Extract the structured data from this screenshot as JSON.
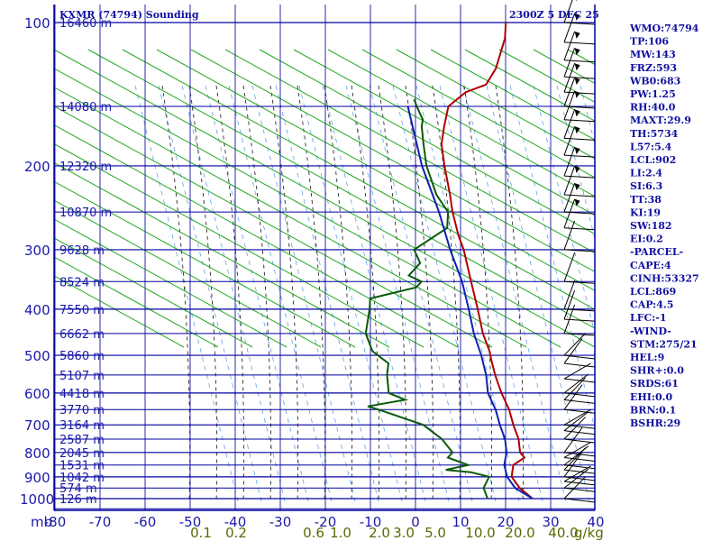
{
  "header": {
    "station": "KXMR (74794) Sounding",
    "time": "2300Z 5 DEC 25"
  },
  "indices": [
    "WMO:74794",
    "TP:106",
    "MW:143",
    "FRZ:593",
    "WB0:683",
    "PW:1.25",
    "RH:40.0",
    "MAXT:29.9",
    "TH:5734",
    "L57:5.4",
    "LCL:902",
    "LI:2.4",
    "SI:6.3",
    "TT:38",
    "KI:19",
    "SW:182",
    "EI:0.2",
    "-PARCEL-",
    "CAPE:4",
    "CINH:53327",
    "LCL:869",
    "CAP:4.5",
    "LFC:-1",
    "-WIND-",
    "STM:275/21",
    "HEL:9",
    "SHR+:0.0",
    "SRDS:61",
    "EHI:0.0",
    "BRN:0.1",
    "BSHR:29"
  ],
  "colors": {
    "grid": "#0000a0",
    "isotherm": "#2a2aa8",
    "dry_adiabat": "#22a822",
    "moist_adiabat": "#2a2a2a",
    "mixing_ratio": "#3a8ae0",
    "temperature": "#b00000",
    "dewpoint": "#0a5a0a",
    "parcel": "#1020b0",
    "text": "#1010a0",
    "mixing_label": "#5a6a00"
  },
  "chart_data": {
    "type": "line",
    "title": "KXMR (74794) Sounding",
    "axis_units_label": "mb",
    "pressure_ticks": [
      "100",
      "200",
      "300",
      "400",
      "500",
      "600",
      "700",
      "800",
      "900",
      "1000"
    ],
    "height_labels": [
      {
        "p": 100,
        "text": "16460 m"
      },
      {
        "p": 150,
        "text": "14080 m"
      },
      {
        "p": 200,
        "text": "12320 m"
      },
      {
        "p": 250,
        "text": "10870 m"
      },
      {
        "p": 300,
        "text": "9628 m"
      },
      {
        "p": 350,
        "text": "8524 m"
      },
      {
        "p": 400,
        "text": "7550 m"
      },
      {
        "p": 450,
        "text": "6662 m"
      },
      {
        "p": 500,
        "text": "5860 m"
      },
      {
        "p": 550,
        "text": "5107 m"
      },
      {
        "p": 600,
        "text": "4418 m"
      },
      {
        "p": 650,
        "text": "3770 m"
      },
      {
        "p": 700,
        "text": "3164 m"
      },
      {
        "p": 750,
        "text": "2587 m"
      },
      {
        "p": 800,
        "text": "2045 m"
      },
      {
        "p": 850,
        "text": "1531 m"
      },
      {
        "p": 900,
        "text": "1042 m"
      },
      {
        "p": 950,
        "text": "574 m"
      },
      {
        "p": 1000,
        "text": "126 m"
      }
    ],
    "temperature_ticks": [
      "-80",
      "-70",
      "-60",
      "-50",
      "-40",
      "-30",
      "-20",
      "-10",
      "0",
      "10",
      "20",
      "30",
      "40"
    ],
    "mixing_ratio_ticks": [
      "0.1",
      "0.2",
      "0.6",
      "1.0",
      "2.0",
      "3.0",
      "5.0",
      "10.0",
      "20.0",
      "40.0"
    ],
    "mixing_ratio_unit": "g/kg",
    "pressure_range": [
      100,
      1050
    ],
    "series": [
      {
        "key": "temperature",
        "points": [
          [
            100,
            -75
          ],
          [
            108,
            -72
          ],
          [
            125,
            -68
          ],
          [
            135,
            -67
          ],
          [
            140,
            -70
          ],
          [
            150,
            -71
          ],
          [
            165,
            -68
          ],
          [
            180,
            -65
          ],
          [
            200,
            -60
          ],
          [
            230,
            -53
          ],
          [
            250,
            -49
          ],
          [
            280,
            -43
          ],
          [
            300,
            -39
          ],
          [
            350,
            -31
          ],
          [
            400,
            -24
          ],
          [
            450,
            -18
          ],
          [
            490,
            -13
          ],
          [
            510,
            -11
          ],
          [
            550,
            -7
          ],
          [
            600,
            -2
          ],
          [
            650,
            3
          ],
          [
            700,
            7
          ],
          [
            750,
            11
          ],
          [
            800,
            14
          ],
          [
            820,
            16
          ],
          [
            850,
            15
          ],
          [
            900,
            17
          ],
          [
            950,
            21
          ],
          [
            1000,
            26
          ]
        ]
      },
      {
        "key": "dewpoint",
        "points": [
          [
            145,
            -80
          ],
          [
            150,
            -78
          ],
          [
            155,
            -76
          ],
          [
            160,
            -74
          ],
          [
            165,
            -73
          ],
          [
            180,
            -69
          ],
          [
            200,
            -64
          ],
          [
            230,
            -56
          ],
          [
            250,
            -50
          ],
          [
            270,
            -47
          ],
          [
            300,
            -50
          ],
          [
            320,
            -46
          ],
          [
            340,
            -46
          ],
          [
            350,
            -42
          ],
          [
            360,
            -42
          ],
          [
            380,
            -50
          ],
          [
            400,
            -48
          ],
          [
            450,
            -44
          ],
          [
            490,
            -39
          ],
          [
            520,
            -33
          ],
          [
            550,
            -31
          ],
          [
            600,
            -27
          ],
          [
            620,
            -22
          ],
          [
            640,
            -29
          ],
          [
            650,
            -26
          ],
          [
            700,
            -13
          ],
          [
            750,
            -6
          ],
          [
            800,
            -1
          ],
          [
            820,
            -1
          ],
          [
            850,
            5
          ],
          [
            870,
            1
          ],
          [
            880,
            7
          ],
          [
            900,
            12
          ],
          [
            950,
            13
          ],
          [
            1000,
            16
          ]
        ]
      },
      {
        "key": "parcel",
        "points": [
          [
            150,
            -80
          ],
          [
            200,
            -65
          ],
          [
            250,
            -52
          ],
          [
            300,
            -42
          ],
          [
            350,
            -33
          ],
          [
            400,
            -26
          ],
          [
            450,
            -20
          ],
          [
            500,
            -14
          ],
          [
            550,
            -9
          ],
          [
            600,
            -5
          ],
          [
            650,
            0
          ],
          [
            700,
            4
          ],
          [
            750,
            8
          ],
          [
            800,
            11
          ],
          [
            850,
            13
          ],
          [
            900,
            16
          ],
          [
            950,
            20
          ],
          [
            1000,
            26
          ]
        ]
      }
    ]
  }
}
